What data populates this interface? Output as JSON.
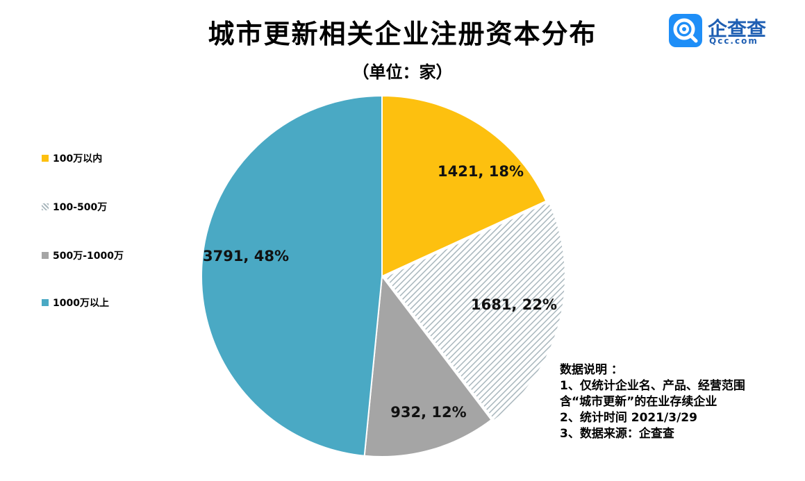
{
  "title": "城市更新相关企业注册资本分布",
  "subtitle": "（单位：家）",
  "logo": {
    "brand": "企查查",
    "domain": "Qcc.com",
    "color": "#1e8ef7"
  },
  "chart_data": {
    "type": "pie",
    "title": "城市更新相关企业注册资本分布",
    "unit": "（单位：家）",
    "legend_position": "left",
    "slices": [
      {
        "name": "100万以内",
        "value": 1421,
        "percent": "18%",
        "label": "1421, 18%",
        "color": "#fdc00f",
        "pattern": "solid"
      },
      {
        "name": "100-500万",
        "value": 1681,
        "percent": "22%",
        "label": "1681, 22%",
        "color": "#a9b7bd",
        "pattern": "diagonal-stripes"
      },
      {
        "name": "500万-1000万",
        "value": 932,
        "percent": "12%",
        "label": "932, 12%",
        "color": "#a5a5a5",
        "pattern": "solid"
      },
      {
        "name": "1000万以上",
        "value": 3791,
        "percent": "48%",
        "label": "3791, 48%",
        "color": "#4aa9c4",
        "pattern": "solid"
      }
    ]
  },
  "notes": {
    "heading": "数据说明  ：",
    "lines": [
      "1、仅统计企业名、产品、经营范围",
      "含“城市更新”的在业存续企业",
      "2、统计时间  2021/3/29",
      "3、数据来源：企查查"
    ]
  }
}
